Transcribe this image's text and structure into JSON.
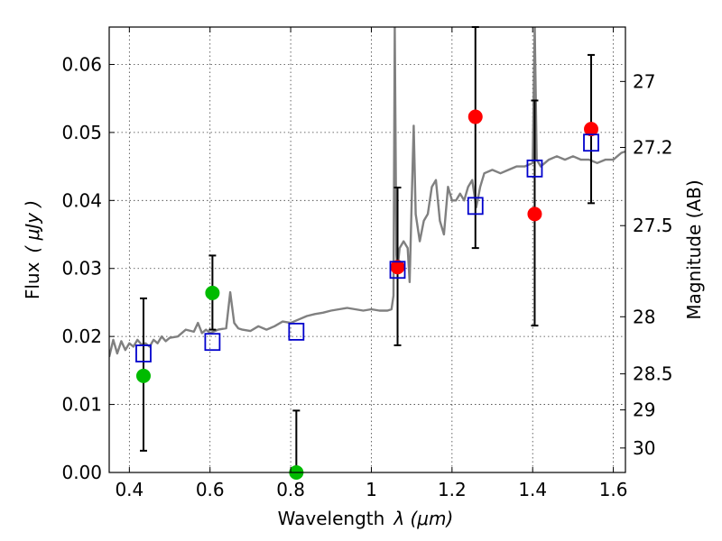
{
  "chart_data": {
    "type": "scatter",
    "xlabel_main": "Wavelength",
    "xlabel_math": "λ (μm)",
    "ylabel_main": "Flux",
    "ylabel_math": "( μJy )",
    "ylabel_right": "Magnitude (AB)",
    "xlim": [
      0.35,
      1.63
    ],
    "ylim": [
      0.0,
      0.0655
    ],
    "grid": true,
    "xticks": [
      0.4,
      0.6,
      0.8,
      1.0,
      1.2,
      1.4,
      1.6
    ],
    "xtick_labels": [
      "0.4",
      "0.6",
      "0.8",
      "1",
      "1.2",
      "1.4",
      "1.6"
    ],
    "yticks": [
      0.0,
      0.01,
      0.02,
      0.03,
      0.04,
      0.05,
      0.06
    ],
    "ytick_labels": [
      "0.00",
      "0.01",
      "0.02",
      "0.03",
      "0.04",
      "0.05",
      "0.06"
    ],
    "right_ticks": [
      {
        "label": "27",
        "flux": 0.0575
      },
      {
        "label": "27.2",
        "flux": 0.0478
      },
      {
        "label": "27.5",
        "flux": 0.0363
      },
      {
        "label": "28",
        "flux": 0.0229
      },
      {
        "label": "28.5",
        "flux": 0.0145
      },
      {
        "label": "29",
        "flux": 0.0092
      },
      {
        "label": "30",
        "flux": 0.0036
      }
    ],
    "template_spectrum": {
      "color": "#808080",
      "x": [
        0.35,
        0.36,
        0.37,
        0.38,
        0.39,
        0.4,
        0.41,
        0.42,
        0.43,
        0.44,
        0.45,
        0.46,
        0.47,
        0.48,
        0.49,
        0.5,
        0.52,
        0.54,
        0.56,
        0.57,
        0.58,
        0.59,
        0.6,
        0.62,
        0.64,
        0.65,
        0.66,
        0.67,
        0.68,
        0.7,
        0.72,
        0.74,
        0.76,
        0.78,
        0.8,
        0.82,
        0.84,
        0.86,
        0.88,
        0.9,
        0.92,
        0.94,
        0.96,
        0.98,
        1.0,
        1.02,
        1.04,
        1.05,
        1.055,
        1.058,
        1.062,
        1.065,
        1.07,
        1.08,
        1.09,
        1.095,
        1.1,
        1.105,
        1.11,
        1.12,
        1.13,
        1.14,
        1.15,
        1.16,
        1.17,
        1.18,
        1.19,
        1.2,
        1.21,
        1.22,
        1.23,
        1.24,
        1.25,
        1.26,
        1.27,
        1.28,
        1.3,
        1.32,
        1.34,
        1.36,
        1.38,
        1.4,
        1.405,
        1.41,
        1.42,
        1.44,
        1.46,
        1.48,
        1.5,
        1.52,
        1.54,
        1.56,
        1.58,
        1.6,
        1.62,
        1.63
      ],
      "y": [
        0.017,
        0.0195,
        0.0175,
        0.0193,
        0.018,
        0.019,
        0.0185,
        0.0195,
        0.0188,
        0.019,
        0.0185,
        0.0195,
        0.019,
        0.02,
        0.0193,
        0.0198,
        0.02,
        0.021,
        0.0207,
        0.022,
        0.0205,
        0.021,
        0.0205,
        0.021,
        0.0212,
        0.0265,
        0.022,
        0.0212,
        0.021,
        0.0208,
        0.0215,
        0.021,
        0.0215,
        0.0222,
        0.022,
        0.0225,
        0.023,
        0.0233,
        0.0235,
        0.0238,
        0.024,
        0.0242,
        0.024,
        0.0238,
        0.024,
        0.0238,
        0.0238,
        0.024,
        0.026,
        0.0655,
        0.032,
        0.03,
        0.033,
        0.034,
        0.033,
        0.028,
        0.04,
        0.051,
        0.038,
        0.034,
        0.037,
        0.038,
        0.042,
        0.043,
        0.037,
        0.035,
        0.042,
        0.04,
        0.04,
        0.041,
        0.04,
        0.042,
        0.043,
        0.039,
        0.042,
        0.044,
        0.0445,
        0.044,
        0.0445,
        0.045,
        0.045,
        0.0455,
        0.0655,
        0.046,
        0.045,
        0.046,
        0.0465,
        0.046,
        0.0465,
        0.046,
        0.046,
        0.0455,
        0.046,
        0.046,
        0.047,
        0.0472
      ]
    },
    "series": [
      {
        "marker": "circle",
        "color": "#00bb00",
        "points": [
          {
            "x": 0.435,
            "y": 0.0142,
            "err_lo": 0.0032,
            "err_hi": 0.0256
          },
          {
            "x": 0.606,
            "y": 0.0264,
            "err_lo": 0.021,
            "err_hi": 0.0319
          },
          {
            "x": 0.814,
            "y": 0.0,
            "err_lo": 0.0,
            "err_hi": 0.0091
          }
        ]
      },
      {
        "marker": "circle",
        "color": "#ff0000",
        "points": [
          {
            "x": 1.065,
            "y": 0.0302,
            "err_lo": 0.0187,
            "err_hi": 0.0419
          },
          {
            "x": 1.258,
            "y": 0.0523,
            "err_lo": 0.033,
            "err_hi": 0.0655
          },
          {
            "x": 1.405,
            "y": 0.038,
            "err_lo": 0.0216,
            "err_hi": 0.0547
          },
          {
            "x": 1.545,
            "y": 0.0505,
            "err_lo": 0.0396,
            "err_hi": 0.0614
          }
        ]
      },
      {
        "marker": "open-square",
        "color": "#0000cc",
        "points": [
          {
            "x": 0.435,
            "y": 0.0175
          },
          {
            "x": 0.606,
            "y": 0.0192
          },
          {
            "x": 0.814,
            "y": 0.0207
          },
          {
            "x": 1.065,
            "y": 0.0298
          },
          {
            "x": 1.258,
            "y": 0.0392
          },
          {
            "x": 1.405,
            "y": 0.0447
          },
          {
            "x": 1.545,
            "y": 0.0485
          }
        ]
      }
    ]
  }
}
